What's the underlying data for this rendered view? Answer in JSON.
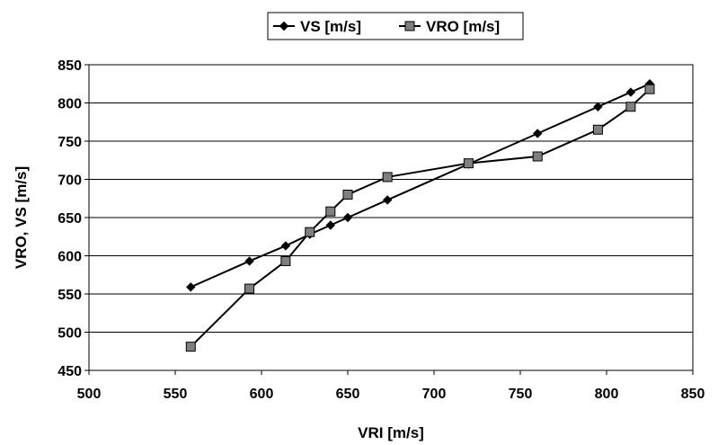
{
  "chart_data": {
    "type": "line",
    "xlabel": "VRI [m/s]",
    "ylabel": "VRO, VS [m/s]",
    "xlim": [
      500,
      850
    ],
    "ylim": [
      450,
      850
    ],
    "x_ticks": [
      500,
      550,
      600,
      650,
      700,
      750,
      800,
      850
    ],
    "y_ticks": [
      450,
      500,
      550,
      600,
      650,
      700,
      750,
      800,
      850
    ],
    "grid": "horizontal",
    "legend_position": "top-center",
    "series": [
      {
        "name": "VS [m/s]",
        "marker": "diamond",
        "color": "#000000",
        "x": [
          559,
          593,
          614,
          628,
          640,
          650,
          673,
          720,
          760,
          795,
          814,
          825
        ],
        "y": [
          559,
          593,
          613,
          628,
          640,
          650,
          673,
          720,
          760,
          795,
          814,
          825
        ]
      },
      {
        "name": "VRO [m/s]",
        "marker": "square",
        "color": "#000000",
        "marker_fill": "#7f7f7f",
        "x": [
          559,
          593,
          614,
          628,
          640,
          650,
          673,
          720,
          760,
          795,
          814,
          825
        ],
        "y": [
          481,
          557,
          593,
          631,
          658,
          680,
          703,
          721,
          730,
          765,
          795,
          818
        ]
      }
    ]
  }
}
